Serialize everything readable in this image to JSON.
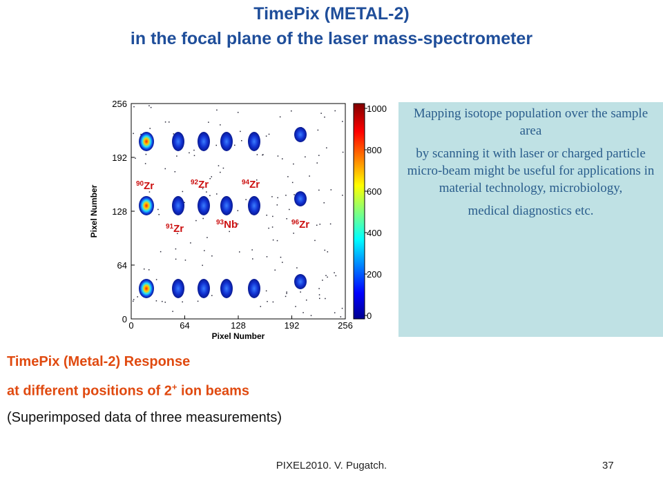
{
  "header": {
    "title_lines": [
      "TimePix (METAL-2)",
      "in the focal plane of the laser mass-spectrometer"
    ]
  },
  "figure": {
    "x_label": "Pixel Number",
    "y_label": "Pixel Number",
    "x_ticks": [
      0,
      64,
      128,
      192,
      256
    ],
    "y_ticks": [
      0,
      64,
      128,
      192,
      256
    ],
    "colorbar_ticks": [
      0,
      200,
      400,
      600,
      800,
      1000
    ],
    "isotopes": [
      {
        "mass": "90",
        "element": "Zr"
      },
      {
        "mass": "92",
        "element": "Zr"
      },
      {
        "mass": "94",
        "element": "Zr"
      },
      {
        "mass": "91",
        "element": "Zr"
      },
      {
        "mass": "93",
        "element": "Nb"
      },
      {
        "mass": "96",
        "element": "Zr"
      }
    ]
  },
  "caption": {
    "line1": "TimePix (Metal-2) Response",
    "line2_before": "at different positions of 2",
    "line2_sup": "+",
    "line2_after": " ion beams",
    "line3": "(Superimposed data of three measurements)"
  },
  "note": {
    "paragraphs": [
      "Mapping isotope population over the sample area",
      "by scanning it with laser or charged particle micro-beam might be useful for applications in material technology, microbiology,",
      "medical diagnostics etc."
    ]
  },
  "footer": {
    "author": "PIXEL2010. V. Pugatch.",
    "page": "37"
  }
}
